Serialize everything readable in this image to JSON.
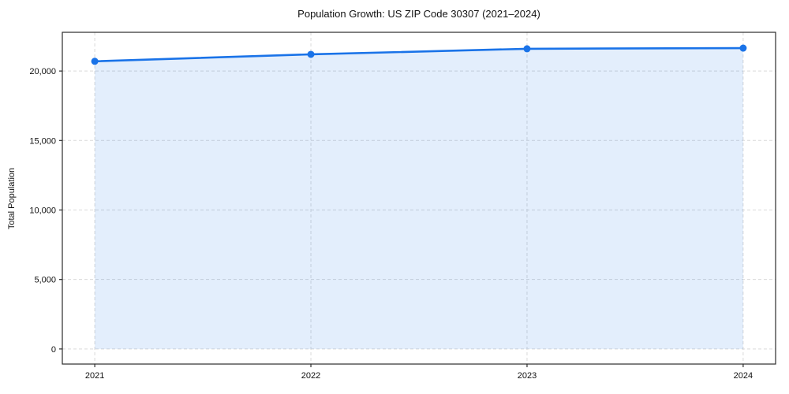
{
  "chart_data": {
    "type": "area",
    "title": "Population Growth: US ZIP Code 30307 (2021–2024)",
    "xlabel": "",
    "ylabel": "Total Population",
    "categories": [
      "2021",
      "2022",
      "2023",
      "2024"
    ],
    "x": [
      2021,
      2022,
      2023,
      2024
    ],
    "values": [
      20700,
      21200,
      21600,
      21650
    ],
    "series": [
      {
        "name": "Total Population",
        "values": [
          20700,
          21200,
          21600,
          21650
        ]
      }
    ],
    "yticks": [
      0,
      5000,
      10000,
      15000,
      20000
    ],
    "ytick_labels": [
      "0",
      "5,000",
      "10,000",
      "15,000",
      "20,000"
    ],
    "xticks": [
      2021,
      2022,
      2023,
      2024
    ],
    "xtick_labels": [
      "2021",
      "2022",
      "2023",
      "2024"
    ],
    "xlim": [
      2020.85,
      2024.15
    ],
    "ylim": [
      -1085,
      22785
    ],
    "grid": true,
    "grid_style": "dashed",
    "legend": false,
    "baseline": 0,
    "colors": {
      "line": "#1A73E8",
      "marker": "#1A73E8",
      "area_fill": "#1A73E8",
      "grid": "#D9D9D9",
      "spine": "#2B2B2B",
      "text": "#1A1A1A",
      "background": "#FFFFFF"
    },
    "area_fill_opacity": 0.12
  }
}
